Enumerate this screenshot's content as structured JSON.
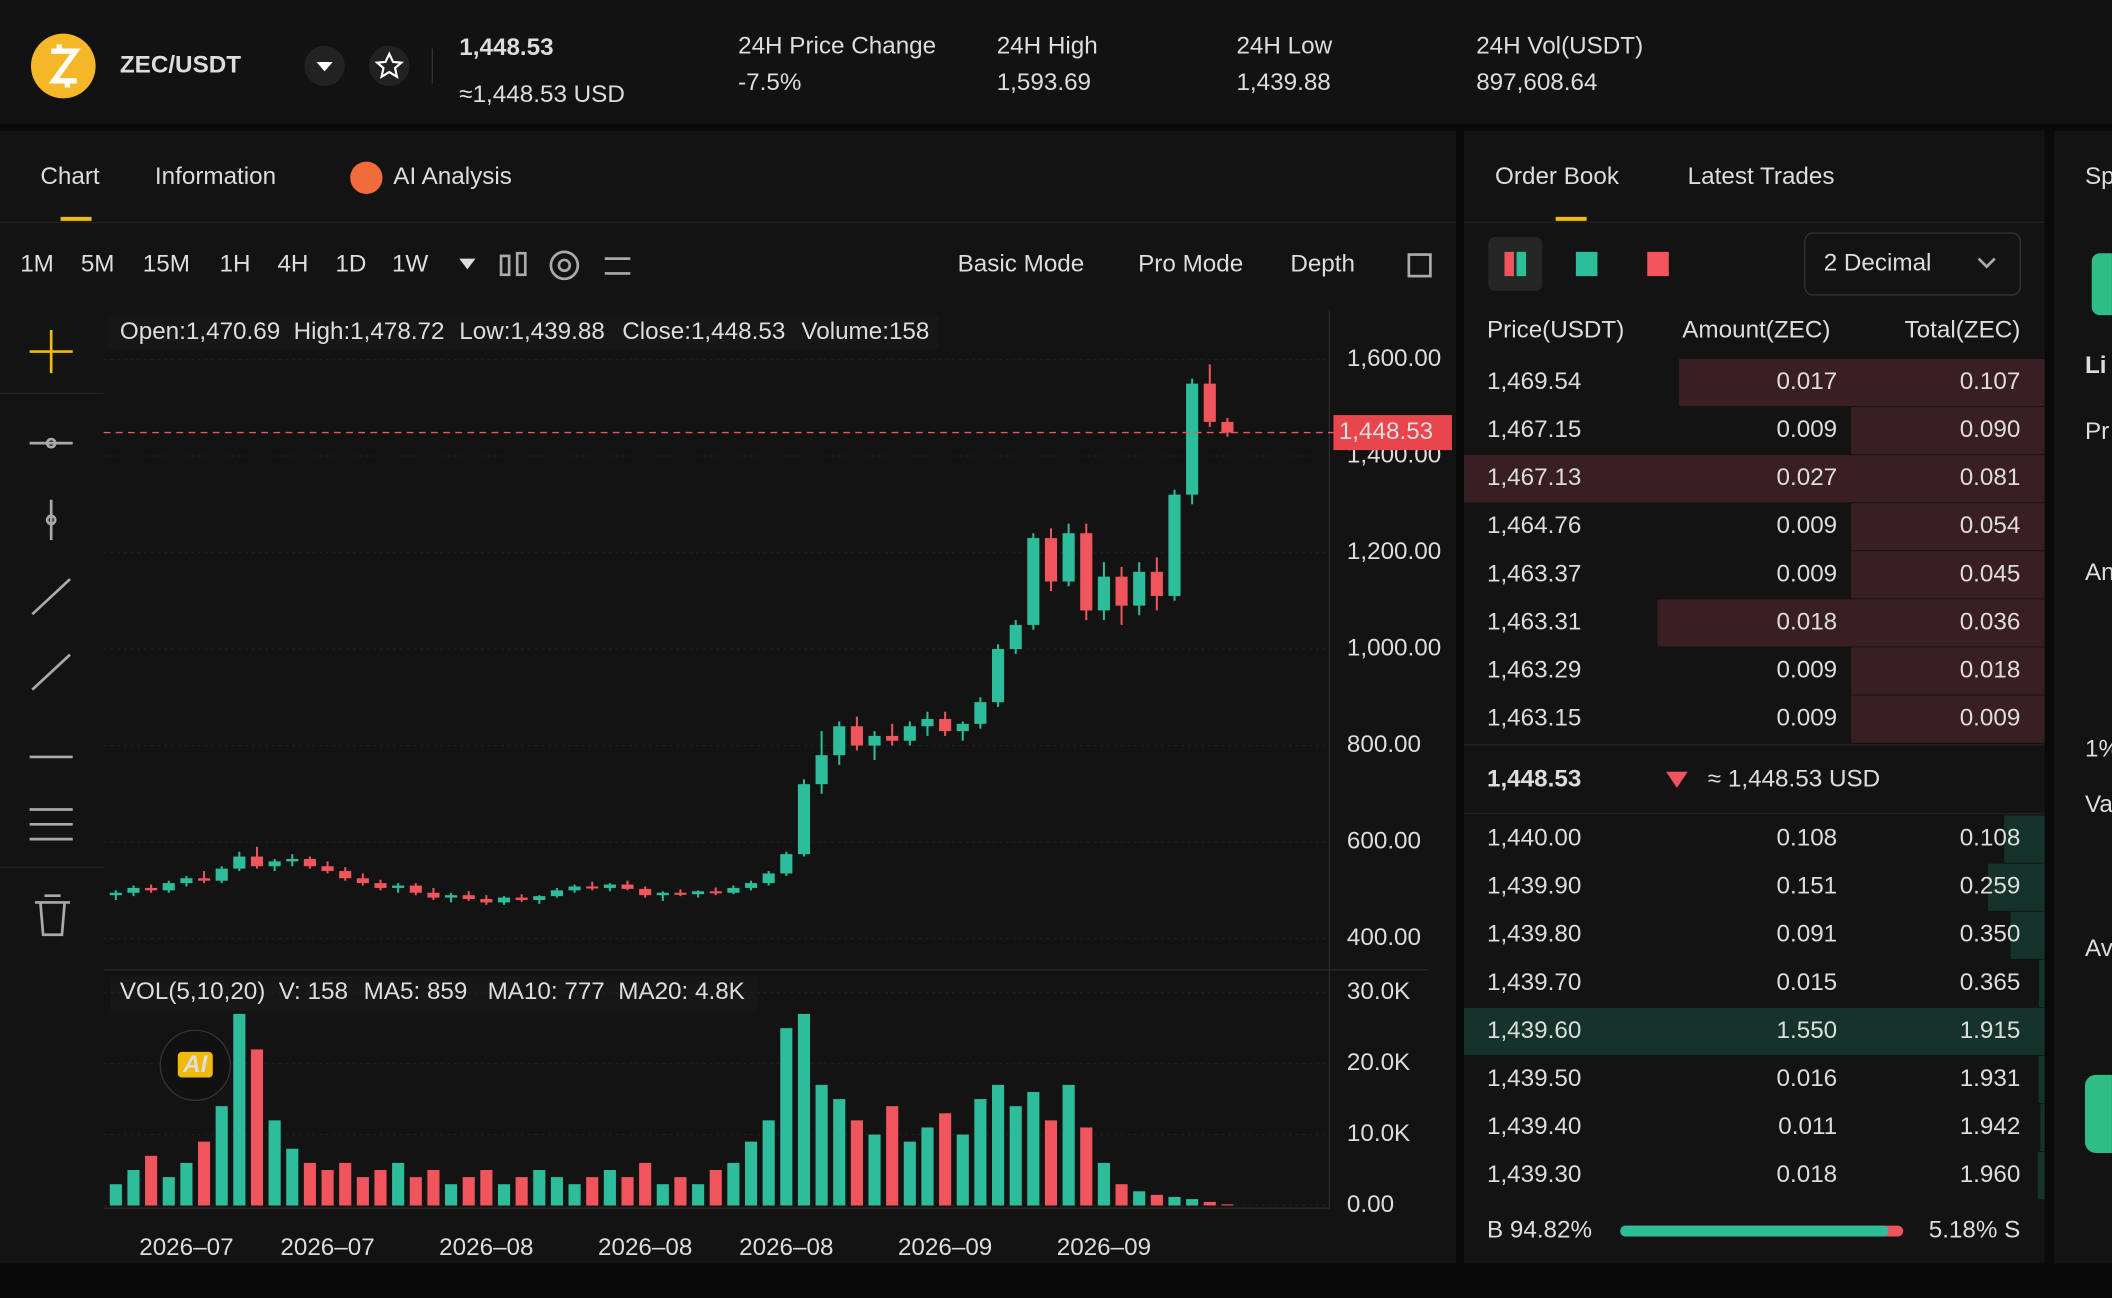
{
  "header": {
    "pair": "ZEC/USDT",
    "price": "1,448.53",
    "price_usd": "≈1,448.53 USD",
    "stats": [
      {
        "label": "24H Price Change",
        "value": "-7.5%"
      },
      {
        "label": "24H High",
        "value": "1,593.69"
      },
      {
        "label": "24H Low",
        "value": "1,439.88"
      },
      {
        "label": "24H Vol(USDT)",
        "value": "897,608.64"
      }
    ]
  },
  "chart_tabs": [
    "Chart",
    "Information",
    "AI Analysis"
  ],
  "intervals": [
    "1M",
    "5M",
    "15M",
    "1H",
    "4H",
    "1D",
    "1W"
  ],
  "modes": [
    "Basic Mode",
    "Pro Mode",
    "Depth"
  ],
  "chart_data": {
    "type": "candlestick",
    "ohlc_legend": [
      "Open:1,470.69",
      "High:1,478.72",
      "Low:1,439.88",
      "Close:1,448.53",
      "Volume:158"
    ],
    "vol_legend": [
      "VOL(5,10,20)",
      "V: 158",
      "MA5: 859",
      "MA10: 777",
      "MA20: 4.8K"
    ],
    "ai_badge": "AI",
    "categories": [
      null,
      null,
      null,
      null,
      "2026–07",
      null,
      null,
      null,
      null,
      null,
      null,
      null,
      "2026–07",
      null,
      null,
      null,
      null,
      null,
      null,
      null,
      null,
      "2026–08",
      null,
      null,
      null,
      null,
      null,
      null,
      null,
      null,
      "2026–08",
      null,
      null,
      null,
      null,
      null,
      null,
      null,
      "2026–08",
      null,
      null,
      null,
      null,
      null,
      null,
      null,
      null,
      "2026–09",
      null,
      null,
      null,
      null,
      null,
      null,
      null,
      null,
      "2026–09",
      null,
      null,
      null,
      null,
      null,
      null,
      null
    ],
    "ohlc": [
      [
        490,
        500,
        480,
        495
      ],
      [
        495,
        510,
        488,
        505
      ],
      [
        505,
        512,
        495,
        500
      ],
      [
        500,
        520,
        495,
        515
      ],
      [
        515,
        530,
        508,
        525
      ],
      [
        525,
        540,
        515,
        520
      ],
      [
        520,
        550,
        515,
        545
      ],
      [
        545,
        580,
        540,
        570
      ],
      [
        570,
        590,
        545,
        550
      ],
      [
        550,
        565,
        540,
        560
      ],
      [
        560,
        575,
        550,
        565
      ],
      [
        565,
        570,
        545,
        550
      ],
      [
        550,
        560,
        535,
        540
      ],
      [
        540,
        548,
        520,
        525
      ],
      [
        525,
        535,
        510,
        515
      ],
      [
        515,
        522,
        500,
        505
      ],
      [
        505,
        515,
        495,
        510
      ],
      [
        510,
        515,
        490,
        495
      ],
      [
        495,
        505,
        480,
        485
      ],
      [
        485,
        495,
        475,
        490
      ],
      [
        490,
        498,
        478,
        482
      ],
      [
        482,
        490,
        470,
        475
      ],
      [
        475,
        488,
        470,
        485
      ],
      [
        485,
        492,
        476,
        480
      ],
      [
        480,
        490,
        472,
        488
      ],
      [
        488,
        505,
        485,
        500
      ],
      [
        500,
        512,
        495,
        508
      ],
      [
        508,
        518,
        500,
        505
      ],
      [
        505,
        515,
        498,
        512
      ],
      [
        512,
        520,
        500,
        503
      ],
      [
        503,
        508,
        485,
        490
      ],
      [
        490,
        498,
        478,
        495
      ],
      [
        495,
        502,
        488,
        492
      ],
      [
        492,
        500,
        485,
        498
      ],
      [
        498,
        506,
        490,
        495
      ],
      [
        495,
        510,
        492,
        505
      ],
      [
        505,
        520,
        500,
        515
      ],
      [
        515,
        540,
        510,
        535
      ],
      [
        535,
        580,
        530,
        575
      ],
      [
        575,
        730,
        570,
        720
      ],
      [
        720,
        830,
        700,
        780
      ],
      [
        780,
        850,
        760,
        840
      ],
      [
        840,
        860,
        790,
        800
      ],
      [
        800,
        830,
        770,
        820
      ],
      [
        820,
        845,
        800,
        810
      ],
      [
        810,
        850,
        800,
        840
      ],
      [
        840,
        870,
        820,
        855
      ],
      [
        855,
        870,
        820,
        830
      ],
      [
        830,
        850,
        810,
        845
      ],
      [
        845,
        900,
        835,
        890
      ],
      [
        890,
        1010,
        880,
        1000
      ],
      [
        1000,
        1060,
        990,
        1050
      ],
      [
        1050,
        1240,
        1040,
        1230
      ],
      [
        1230,
        1250,
        1120,
        1140
      ],
      [
        1140,
        1260,
        1130,
        1240
      ],
      [
        1240,
        1260,
        1060,
        1080
      ],
      [
        1080,
        1180,
        1060,
        1150
      ],
      [
        1150,
        1170,
        1050,
        1090
      ],
      [
        1090,
        1180,
        1070,
        1160
      ],
      [
        1160,
        1190,
        1080,
        1110
      ],
      [
        1110,
        1330,
        1100,
        1320
      ],
      [
        1320,
        1560,
        1300,
        1550
      ],
      [
        1550,
        1590,
        1460,
        1470.69
      ],
      [
        1470.69,
        1478.72,
        1439.88,
        1448.53
      ]
    ],
    "volumes": [
      3000,
      5000,
      7000,
      4000,
      6000,
      9000,
      14000,
      27000,
      22000,
      12000,
      8000,
      6000,
      5000,
      6000,
      4000,
      5000,
      6000,
      4000,
      5000,
      3000,
      4000,
      5000,
      3000,
      4000,
      5000,
      4000,
      3000,
      4000,
      5000,
      4000,
      6000,
      3000,
      4000,
      3000,
      5000,
      6000,
      9000,
      12000,
      25000,
      27000,
      17000,
      15000,
      12000,
      10000,
      14000,
      9000,
      11000,
      13000,
      10000,
      15000,
      17000,
      14000,
      16000,
      12000,
      17000,
      11000,
      6000,
      3000,
      2000,
      1500,
      1200,
      900,
      500,
      158
    ],
    "up_color": "#2ebd9b",
    "down_color": "#f0545c",
    "ylim": [
      341,
      1703
    ],
    "yticks": [
      {
        "value": 1600,
        "label": "1,600.00"
      },
      {
        "value": 1400,
        "label": "1,400.00"
      },
      {
        "value": 1200,
        "label": "1,200.00"
      },
      {
        "value": 1000,
        "label": "1,000.00"
      },
      {
        "value": 800,
        "label": "800.00"
      },
      {
        "value": 600,
        "label": "600.00"
      },
      {
        "value": 400,
        "label": "400.00"
      }
    ],
    "vol_ylim": [
      0,
      30000
    ],
    "vol_yticks": [
      {
        "value": 30000,
        "label": "30.0K"
      },
      {
        "value": 20000,
        "label": "20.0K"
      },
      {
        "value": 10000,
        "label": "10.0K"
      },
      {
        "value": 0,
        "label": "0.00"
      }
    ],
    "last_price": {
      "value": 1448.53,
      "label": "1,448.53"
    },
    "grid": true
  },
  "order_book": {
    "tabs": [
      "Order Book",
      "Latest Trades"
    ],
    "decimal": "2 Decimal",
    "headers": [
      "Price(USDT)",
      "Amount(ZEC)",
      "Total(ZEC)"
    ],
    "asks": [
      [
        "1,469.54",
        "0.017",
        "0.107"
      ],
      [
        "1,467.15",
        "0.009",
        "0.090"
      ],
      [
        "1,467.13",
        "0.027",
        "0.081"
      ],
      [
        "1,464.76",
        "0.009",
        "0.054"
      ],
      [
        "1,463.37",
        "0.009",
        "0.045"
      ],
      [
        "1,463.31",
        "0.018",
        "0.036"
      ],
      [
        "1,463.29",
        "0.009",
        "0.018"
      ],
      [
        "1,463.15",
        "0.009",
        "0.009"
      ]
    ],
    "mid_price": "1,448.53",
    "mid_usd": "≈ 1,448.53 USD",
    "bids": [
      [
        "1,440.00",
        "0.108",
        "0.108"
      ],
      [
        "1,439.90",
        "0.151",
        "0.259"
      ],
      [
        "1,439.80",
        "0.091",
        "0.350"
      ],
      [
        "1,439.70",
        "0.015",
        "0.365"
      ],
      [
        "1,439.60",
        "1.550",
        "1.915"
      ],
      [
        "1,439.50",
        "0.016",
        "1.931"
      ],
      [
        "1,439.40",
        "0.011",
        "1.942"
      ],
      [
        "1,439.30",
        "0.018",
        "1.960"
      ]
    ],
    "buy": {
      "value": 94.82,
      "label": "B 94.82%"
    },
    "sell": {
      "value": 5.18,
      "label": "5.18% S"
    }
  },
  "side_fragments": [
    "Sp",
    "Li",
    "Pr",
    "An",
    "1%",
    "Va",
    "Av"
  ]
}
